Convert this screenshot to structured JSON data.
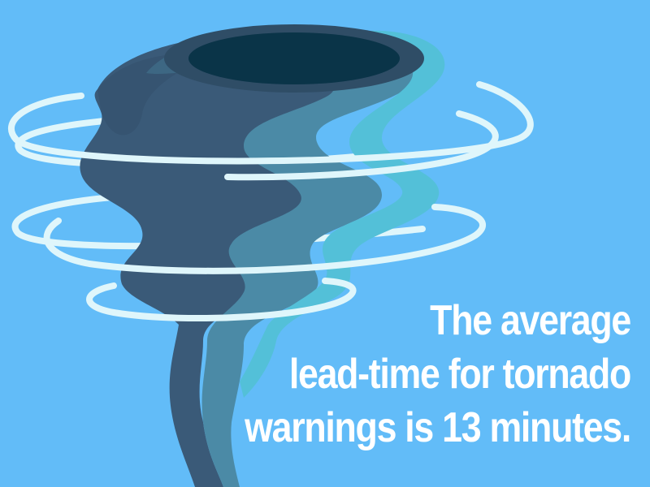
{
  "colors": {
    "sky": "#62bcf8",
    "funnel_dark": "#3a5a78",
    "funnel_mid": "#4b8aa6",
    "funnel_light": "#53c0d8",
    "eye": "#0a3448",
    "wind_rings": "#dff6fb",
    "text": "#ffffff"
  },
  "icons": {
    "illustration": "tornado-icon"
  },
  "caption": {
    "line1": "The average",
    "line2": "lead-time for tornado",
    "line3": "warnings is 13 minutes."
  }
}
